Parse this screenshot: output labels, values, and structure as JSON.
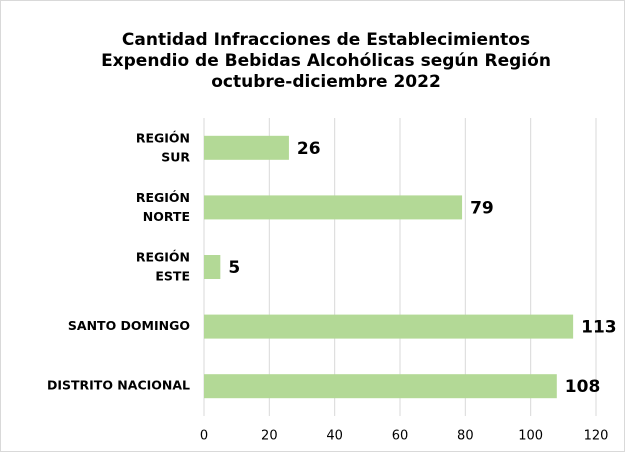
{
  "chart_data": {
    "type": "bar",
    "orientation": "horizontal",
    "title": "Cantidad Infracciones de Establecimientos\nExpendio de Bebidas Alcohólicas según Región\noctubre-diciembre 2022",
    "categories": [
      "REGIÓN\nSUR",
      "REGIÓN\nNORTE",
      "REGIÓN\nESTE",
      "SANTO DOMINGO",
      "DISTRITO NACIONAL"
    ],
    "values": [
      26,
      79,
      5,
      113,
      108
    ],
    "color": "#b3d996",
    "xlim": [
      0,
      120
    ],
    "xticks": [
      0,
      20,
      40,
      60,
      80,
      100,
      120
    ],
    "grid": true
  }
}
